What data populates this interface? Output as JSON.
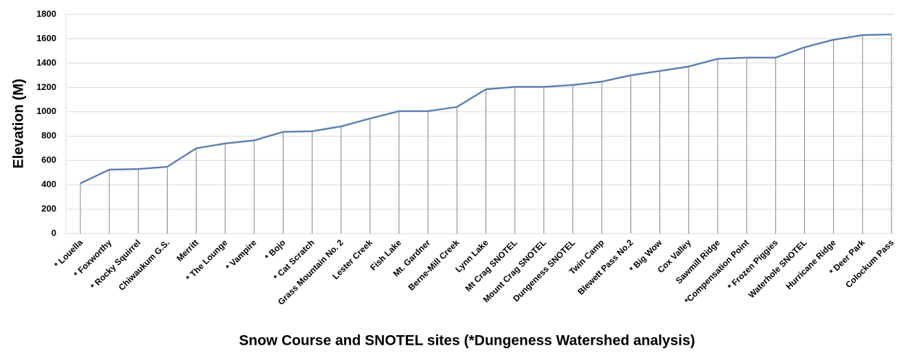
{
  "chart_data": {
    "type": "line",
    "x_label": "Snow Course and SNOTEL sites (*Dungeness Watershed analysis)",
    "y_label": "Elevation (M)",
    "categories": [
      "* Louella",
      "* Foxworthy",
      "* Rocky Squirrel",
      "Chiwaukum G.S.",
      "Merritt",
      "* The Lounge",
      "* Vampire",
      "* Bojo",
      "* Cat Scratch",
      "Grass Mountain No. 2",
      "Lester Creek",
      "Fish Lake",
      "Mt. Gardner",
      "Berne-Mill Creek",
      "Lynn Lake",
      "Mt Crag SNOTEL",
      "Mount Crag SNOTEL",
      "Dungeness SNOTEL",
      "Twin Camp",
      "Blewett Pass No.2",
      "* Big Wow",
      "Cox Valley",
      "Sawmill Ridge",
      "*Compensation Point",
      "* Frozen Piggies",
      "Waterhole SNOTEL",
      "Hurricane Ridge",
      "* Deer Park",
      "Colockum Pass"
    ],
    "values": [
      412,
      525,
      530,
      548,
      700,
      740,
      765,
      835,
      840,
      880,
      945,
      1005,
      1005,
      1040,
      1185,
      1205,
      1205,
      1220,
      1248,
      1300,
      1335,
      1372,
      1435,
      1445,
      1445,
      1530,
      1592,
      1630,
      1636
    ],
    "color": "#5b80b2",
    "drop_line_color": "#7f7f7f",
    "ylim": [
      0,
      1800
    ],
    "yticks": [
      0,
      200,
      400,
      600,
      800,
      1000,
      1200,
      1400,
      1600,
      1800
    ],
    "grid": true
  }
}
